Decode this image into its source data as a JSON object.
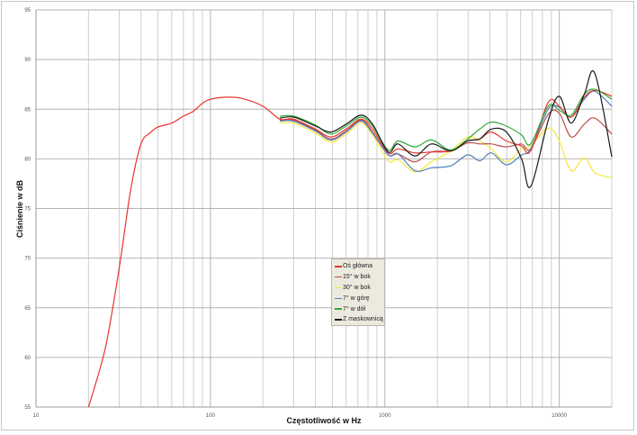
{
  "chart_data": {
    "type": "line",
    "title": "",
    "xlabel": "Częstotliwość w Hz",
    "ylabel": "Ciśnienie w dB",
    "xscale": "log",
    "xlim": [
      10,
      20000
    ],
    "ylim": [
      55,
      95
    ],
    "x_tick_labels": [
      "10",
      "100",
      "1000",
      "10000"
    ],
    "y_tick_labels": [
      "55",
      "60",
      "65",
      "70",
      "75",
      "80",
      "85",
      "90",
      "95"
    ],
    "grid": true,
    "legend_position": "center-bottom",
    "series": [
      {
        "name": "Oś główna",
        "color": "#e8332a",
        "x": [
          20,
          25,
          30,
          35,
          40,
          45,
          50,
          60,
          70,
          80,
          90,
          100,
          120,
          150,
          200,
          250,
          300,
          400,
          490,
          600,
          730,
          850,
          1045,
          1190,
          1490,
          1850,
          2390,
          2980,
          3500,
          4080,
          4970,
          6080,
          6850,
          8650,
          10000,
          11700,
          13900,
          16000,
          20000
        ],
        "y": [
          55,
          61,
          69,
          77,
          81.5,
          82.6,
          83.2,
          83.6,
          84.3,
          84.8,
          85.6,
          86,
          86.2,
          86.1,
          85.3,
          84.0,
          84.0,
          83.0,
          82.2,
          83.0,
          84.0,
          83.0,
          80.6,
          81.0,
          80.6,
          80.7,
          80.8,
          81.8,
          82.0,
          82.7,
          81.8,
          81.3,
          80.8,
          85.7,
          85.3,
          84.2,
          86.2,
          86.9,
          86.3
        ]
      },
      {
        "name": "15° w bok",
        "color": "#c0504d",
        "x": [
          250,
          300,
          400,
          490,
          600,
          730,
          850,
          1045,
          1190,
          1490,
          1850,
          2390,
          2980,
          3500,
          4080,
          4970,
          6080,
          6850,
          8650,
          10000,
          11700,
          13900,
          16000,
          20000
        ],
        "y": [
          83.9,
          83.9,
          82.9,
          82.0,
          82.8,
          83.9,
          82.7,
          80.4,
          80.5,
          79.7,
          80.7,
          80.8,
          81.6,
          81.5,
          81.5,
          81.2,
          81.5,
          81.0,
          84.5,
          84.6,
          82.2,
          83.5,
          84.1,
          82.5
        ]
      },
      {
        "name": "30° w bok",
        "color": "#f5e83a",
        "x": [
          250,
          300,
          400,
          490,
          600,
          730,
          850,
          1045,
          1190,
          1490,
          1850,
          2390,
          2980,
          3500,
          4080,
          4970,
          6080,
          6850,
          8650,
          10000,
          11700,
          13900,
          16000,
          20000
        ],
        "y": [
          83.6,
          83.6,
          82.6,
          81.7,
          82.5,
          83.6,
          82.4,
          79.8,
          79.9,
          78.7,
          79.7,
          80.8,
          82.2,
          81.8,
          81.0,
          79.7,
          81.0,
          81.3,
          83.1,
          81.8,
          78.8,
          80.1,
          78.6,
          78.1
        ]
      },
      {
        "name": "7° w górę",
        "color": "#4f81bd",
        "x": [
          250,
          300,
          400,
          490,
          600,
          730,
          850,
          1045,
          1190,
          1490,
          1850,
          2390,
          2980,
          3500,
          4080,
          4970,
          6080,
          6850,
          8650,
          10000,
          11700,
          13900,
          16000,
          20000
        ],
        "y": [
          83.8,
          83.8,
          82.8,
          81.9,
          82.7,
          83.8,
          82.6,
          80.4,
          80.5,
          78.8,
          79.1,
          79.3,
          80.4,
          79.8,
          80.6,
          79.4,
          80.4,
          81.0,
          85.0,
          85.2,
          84.2,
          86.0,
          86.8,
          85.3
        ]
      },
      {
        "name": "7° w dół",
        "color": "#2ea836",
        "x": [
          250,
          300,
          400,
          490,
          600,
          730,
          850,
          1045,
          1190,
          1490,
          1850,
          2390,
          2980,
          3500,
          4080,
          4970,
          6080,
          6850,
          8650,
          10000,
          11700,
          13900,
          16000,
          20000
        ],
        "y": [
          84.3,
          84.3,
          83.4,
          82.5,
          83.3,
          84.2,
          83.3,
          80.9,
          81.8,
          81.2,
          81.9,
          80.9,
          82.0,
          83.0,
          83.7,
          83.3,
          82.4,
          81.5,
          85.3,
          84.9,
          84.4,
          86.5,
          87.0,
          86.0
        ]
      },
      {
        "name": "Z maskownicą",
        "color": "#1a1a1a",
        "x": [
          250,
          300,
          400,
          490,
          600,
          730,
          850,
          1045,
          1190,
          1490,
          1850,
          2390,
          2980,
          3500,
          4080,
          4970,
          6080,
          6850,
          8650,
          10000,
          11700,
          13900,
          16000,
          20000
        ],
        "y": [
          84.1,
          84.2,
          83.3,
          82.7,
          83.5,
          84.4,
          83.5,
          80.7,
          81.5,
          80.3,
          81.5,
          80.8,
          81.8,
          82.0,
          83.0,
          82.7,
          80.0,
          77.2,
          83.9,
          86.3,
          83.6,
          86.5,
          88.6,
          80.2
        ]
      }
    ]
  }
}
